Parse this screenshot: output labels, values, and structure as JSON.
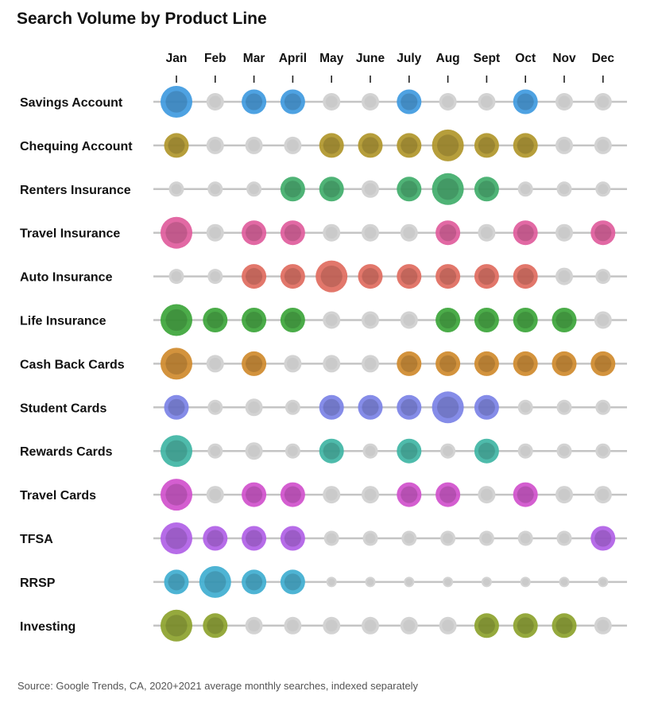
{
  "title": "Search Volume by Product Line",
  "source": "Source: Google Trends, CA, 2020+2021 average monthly  searches, indexed separately",
  "chart_data": {
    "type": "scatter",
    "title": "Search Volume by Product Line",
    "months": [
      "Jan",
      "Feb",
      "Mar",
      "April",
      "May",
      "June",
      "July",
      "Aug",
      "Sept",
      "Oct",
      "Nov",
      "Dec"
    ],
    "inactive_color": "#d3d3d3",
    "series": [
      {
        "name": "Savings Account",
        "color": "#3f9ae0",
        "values": [
          3,
          1,
          2,
          2,
          1,
          1,
          2,
          1,
          1,
          2,
          1,
          1
        ]
      },
      {
        "name": "Chequing Account",
        "color": "#b0962a",
        "values": [
          2,
          1,
          1,
          1,
          2,
          2,
          2,
          3,
          2,
          2,
          1,
          1
        ]
      },
      {
        "name": "Renters Insurance",
        "color": "#40ac6a",
        "values": [
          0,
          0,
          0,
          2,
          2,
          1,
          2,
          3,
          2,
          0,
          0,
          0
        ]
      },
      {
        "name": "Travel Insurance",
        "color": "#df5c9c",
        "values": [
          3,
          1,
          2,
          2,
          1,
          1,
          1,
          2,
          1,
          2,
          1,
          2
        ]
      },
      {
        "name": "Auto Insurance",
        "color": "#e06b5e",
        "values": [
          0,
          0,
          2,
          2,
          3,
          2,
          2,
          2,
          2,
          2,
          1,
          0
        ]
      },
      {
        "name": "Life Insurance",
        "color": "#3ca53a",
        "values": [
          3,
          2,
          2,
          2,
          1,
          1,
          1,
          2,
          2,
          2,
          2,
          1
        ]
      },
      {
        "name": "Cash Back Cards",
        "color": "#cf8a2c",
        "values": [
          3,
          1,
          2,
          1,
          1,
          1,
          2,
          2,
          2,
          2,
          2,
          2
        ]
      },
      {
        "name": "Student Cards",
        "color": "#7b82e6",
        "values": [
          2,
          0,
          1,
          0,
          2,
          2,
          2,
          3,
          2,
          0,
          0,
          0
        ]
      },
      {
        "name": "Rewards Cards",
        "color": "#3fb5a4",
        "values": [
          3,
          0,
          1,
          0,
          2,
          0,
          2,
          0,
          2,
          0,
          0,
          0
        ]
      },
      {
        "name": "Travel Cards",
        "color": "#d050cc",
        "values": [
          3,
          1,
          2,
          2,
          1,
          1,
          2,
          2,
          1,
          2,
          1,
          1
        ]
      },
      {
        "name": "TFSA",
        "color": "#b060e6",
        "values": [
          3,
          2,
          2,
          2,
          0,
          0,
          0,
          0,
          0,
          0,
          0,
          2
        ]
      },
      {
        "name": "RRSP",
        "color": "#3faed0",
        "values": [
          2,
          3,
          2,
          2,
          -1,
          -1,
          -1,
          -1,
          -1,
          -1,
          -1,
          -1
        ]
      },
      {
        "name": "Investing",
        "color": "#8ca22c",
        "values": [
          3,
          2,
          1,
          1,
          1,
          1,
          1,
          1,
          2,
          2,
          2,
          1
        ]
      }
    ]
  }
}
